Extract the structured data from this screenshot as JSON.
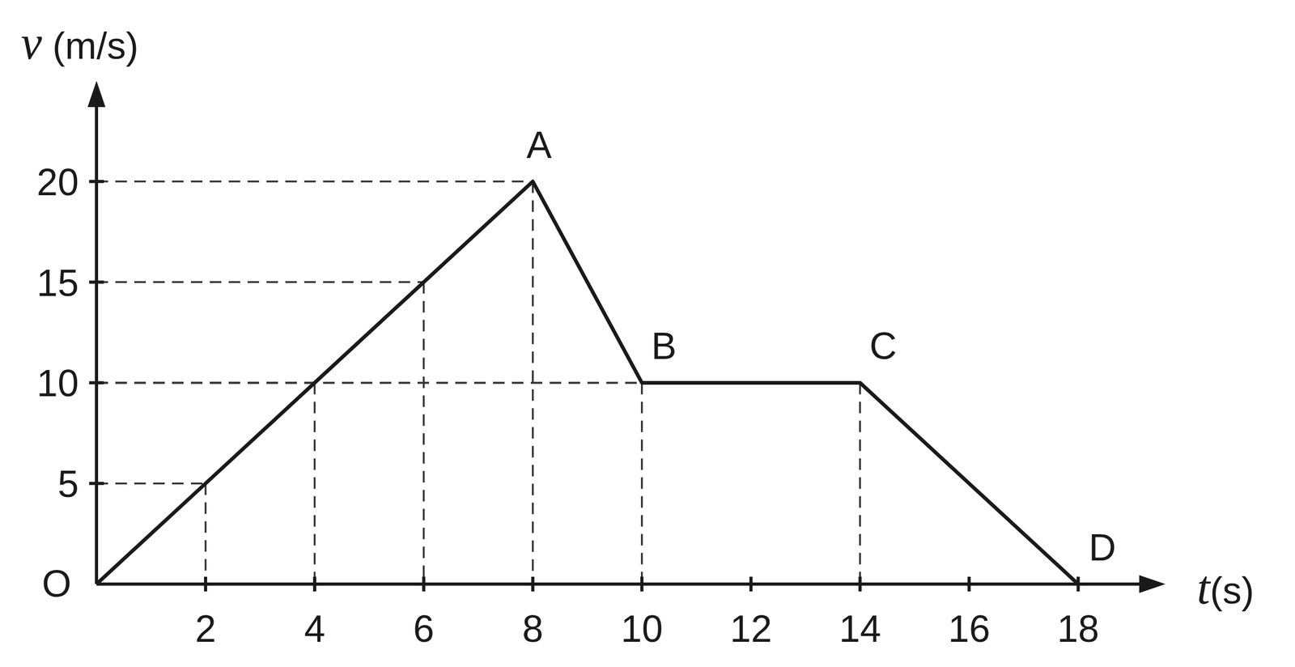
{
  "chart_data": {
    "type": "line",
    "x_label": "t(s)",
    "y_label": "v (m/s)",
    "x": [
      0,
      2,
      4,
      6,
      8,
      10,
      14,
      18
    ],
    "values": [
      0,
      5,
      10,
      15,
      20,
      10,
      10,
      0
    ],
    "point_labels": [
      "O",
      null,
      null,
      null,
      "A",
      "B",
      "C",
      "D"
    ],
    "xlim": [
      0,
      19.6
    ],
    "ylim": [
      0,
      25
    ],
    "xticks": [
      2,
      4,
      6,
      8,
      10,
      12,
      14,
      16,
      18
    ],
    "yticks": [
      5,
      10,
      15,
      20
    ],
    "color": "#1a1a1a",
    "line_style": "solid",
    "grid": false
  }
}
